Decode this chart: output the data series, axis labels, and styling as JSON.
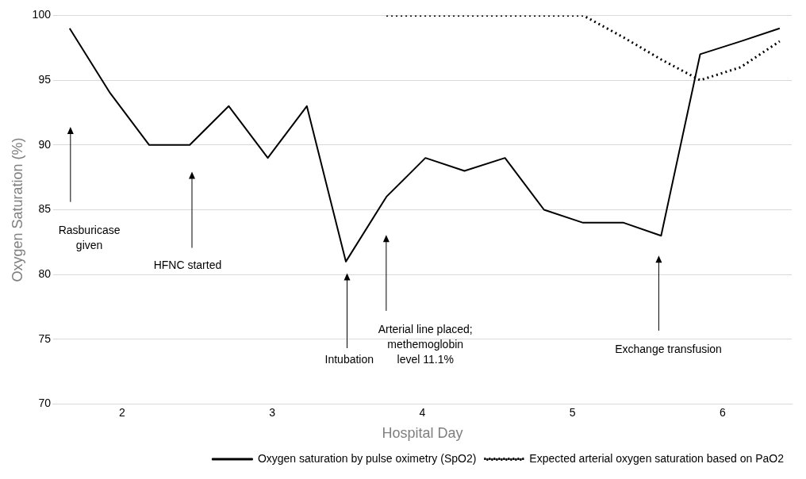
{
  "chart_data": {
    "type": "line",
    "xlabel": "Hospital Day",
    "ylabel": "Oxygen Saturation (%)",
    "xlim": [
      1.54,
      6.46
    ],
    "xticks": [
      2,
      3,
      4,
      5,
      6
    ],
    "ylim": [
      70,
      100
    ],
    "yticks": [
      70,
      75,
      80,
      85,
      90,
      95,
      100
    ],
    "grid": "y",
    "legend": "bottom right",
    "marker": "none",
    "series": [
      {
        "name": "Oxygen saturation by pulse oximetry (SpO2)",
        "color": "#000000",
        "line_style": "solid",
        "x": [
          1.65,
          1.92,
          2.18,
          2.45,
          2.71,
          2.97,
          3.23,
          3.49,
          3.76,
          4.02,
          4.28,
          4.55,
          4.81,
          5.07,
          5.34,
          5.59,
          5.85,
          6.12,
          6.38
        ],
        "values": [
          99,
          94,
          90,
          90,
          93,
          89,
          93,
          81,
          86,
          89,
          88,
          89,
          85,
          84,
          84,
          83,
          97,
          98,
          99
        ]
      },
      {
        "name": "Expected arterial oxygen saturation based on PaO2",
        "color": "#000000",
        "line_style": "dotted",
        "x": [
          3.76,
          4.02,
          4.28,
          4.55,
          4.81,
          5.07,
          5.34,
          5.59,
          5.85,
          6.12,
          6.38
        ],
        "values": [
          100,
          100,
          100,
          100,
          100,
          100,
          98.3,
          96.6,
          95,
          96,
          98
        ]
      }
    ],
    "annotations": [
      "Rasburicase\ngiven",
      "HFNC started",
      "Intubation",
      "Arterial line placed;\nmethemoglobin\nlevel 11.1%",
      "Exchange transfusion"
    ]
  }
}
